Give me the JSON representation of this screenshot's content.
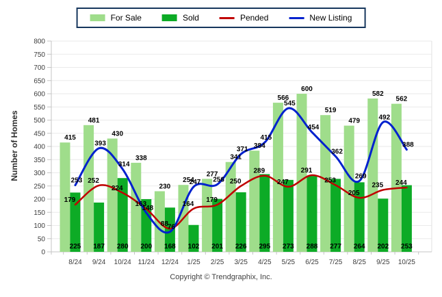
{
  "chart_data": {
    "type": "combo",
    "categories": [
      "8/24",
      "9/24",
      "10/24",
      "11/24",
      "12/24",
      "1/25",
      "2/25",
      "3/25",
      "4/25",
      "5/25",
      "6/25",
      "7/25",
      "8/25",
      "9/25",
      "10/25"
    ],
    "series": [
      {
        "name": "For Sale",
        "render": "bar",
        "color": "#9FDD8B",
        "values": [
          415,
          481,
          430,
          338,
          230,
          254,
          277,
          341,
          384,
          566,
          600,
          519,
          479,
          582,
          562
        ]
      },
      {
        "name": "Sold",
        "render": "bar",
        "color": "#0DAB26",
        "values": [
          225,
          187,
          280,
          200,
          168,
          102,
          201,
          226,
          295,
          273,
          288,
          277,
          264,
          202,
          253
        ]
      },
      {
        "name": "Pended",
        "render": "line",
        "color": "#C00000",
        "values": [
          179,
          252,
          224,
          163,
          88,
          164,
          179,
          250,
          289,
          247,
          291,
          253,
          205,
          235,
          244
        ]
      },
      {
        "name": "New Listing",
        "render": "line",
        "color": "#0021CE",
        "values": [
          253,
          393,
          314,
          148,
          76,
          247,
          256,
          371,
          415,
          545,
          454,
          362,
          269,
          492,
          388
        ]
      }
    ],
    "title": "",
    "xlabel": "",
    "ylabel": "Number of Homes",
    "ylim": [
      0,
      800
    ],
    "ytick_step": 50,
    "grid": true,
    "legend_position": "top"
  },
  "footer": {
    "copyright": "Copyright © Trendgraphix, Inc."
  }
}
